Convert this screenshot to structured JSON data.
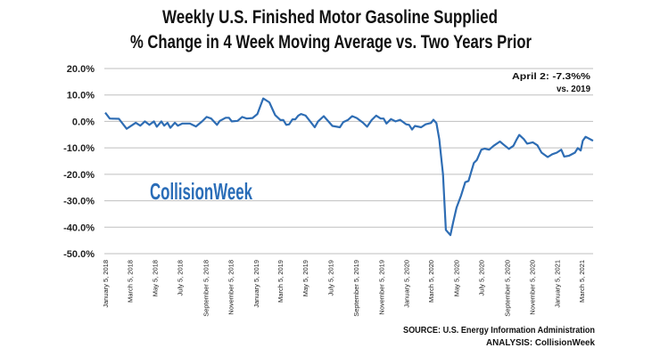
{
  "chart_data": {
    "type": "line",
    "title": "Weekly U.S. Finished Motor Gasoline Supplied",
    "subtitle": "% Change in 4 Week Moving Average vs. Two Years Prior",
    "xlabel": "",
    "ylabel": "",
    "ylim": [
      -50,
      20
    ],
    "y_ticks": [
      "20.0%",
      "10.0%",
      "0.0%",
      "-10.0%",
      "-20.0%",
      "-30.0%",
      "-40.0%",
      "-50.0%"
    ],
    "y_tick_values": [
      20,
      10,
      0,
      -10,
      -20,
      -30,
      -40,
      -50
    ],
    "x_ticks": [
      "January 5, 2018",
      "March 5, 2018",
      "May 5, 2018",
      "July 5, 2018",
      "September 5, 2018",
      "November 5, 2018",
      "January 5, 2019",
      "March 5, 2019",
      "May 5, 2019",
      "July 5, 2019",
      "September 5, 2019",
      "November 5, 2019",
      "January 5, 2020",
      "March 5, 2020",
      "May 5, 2020",
      "July 5, 2020",
      "September 5, 2020",
      "November 5, 2020",
      "January 5, 2021",
      "March 5, 2021"
    ],
    "x_tick_dates": [
      "2018-01-05",
      "2018-03-05",
      "2018-05-05",
      "2018-07-05",
      "2018-09-05",
      "2018-11-05",
      "2019-01-05",
      "2019-03-05",
      "2019-05-05",
      "2019-07-05",
      "2019-09-05",
      "2019-11-05",
      "2020-01-05",
      "2020-03-05",
      "2020-05-05",
      "2020-07-05",
      "2020-09-05",
      "2020-11-05",
      "2021-01-05",
      "2021-03-05"
    ],
    "grid": "horizontal",
    "line_color": "#2e6db4",
    "grid_color": "#bfbfbf",
    "series": [
      {
        "points": [
          [
            "2018-01-05",
            3.3
          ],
          [
            "2018-01-16",
            1.1
          ],
          [
            "2018-02-07",
            1.0
          ],
          [
            "2018-02-26",
            -2.8
          ],
          [
            "2018-03-20",
            -0.5
          ],
          [
            "2018-03-31",
            -1.6
          ],
          [
            "2018-04-11",
            0
          ],
          [
            "2018-04-22",
            -1.3
          ],
          [
            "2018-05-03",
            0
          ],
          [
            "2018-05-10",
            -2
          ],
          [
            "2018-05-21",
            0
          ],
          [
            "2018-05-28",
            -1.6
          ],
          [
            "2018-06-05",
            -0.5
          ],
          [
            "2018-06-12",
            -2.4
          ],
          [
            "2018-06-23",
            -0.5
          ],
          [
            "2018-06-30",
            -1.6
          ],
          [
            "2018-07-11",
            -0.8
          ],
          [
            "2018-07-29",
            -0.8
          ],
          [
            "2018-08-13",
            -1.9
          ],
          [
            "2018-08-28",
            0
          ],
          [
            "2018-09-08",
            1.7
          ],
          [
            "2018-09-19",
            1.1
          ],
          [
            "2018-10-03",
            -1.3
          ],
          [
            "2018-10-10",
            0.2
          ],
          [
            "2018-10-24",
            1.4
          ],
          [
            "2018-11-01",
            1.4
          ],
          [
            "2018-11-08",
            0
          ],
          [
            "2018-11-22",
            0.2
          ],
          [
            "2018-12-03",
            1.7
          ],
          [
            "2018-12-14",
            1.1
          ],
          [
            "2018-12-28",
            1.3
          ],
          [
            "2019-01-09",
            2.8
          ],
          [
            "2019-01-23",
            8.7
          ],
          [
            "2019-02-07",
            7.2
          ],
          [
            "2019-02-21",
            2.4
          ],
          [
            "2019-03-06",
            0.5
          ],
          [
            "2019-03-13",
            0.5
          ],
          [
            "2019-03-20",
            -1.3
          ],
          [
            "2019-03-27",
            -1.1
          ],
          [
            "2019-04-04",
            0.8
          ],
          [
            "2019-04-11",
            0.8
          ],
          [
            "2019-04-18",
            2.2
          ],
          [
            "2019-04-25",
            2.8
          ],
          [
            "2019-05-06",
            2.2
          ],
          [
            "2019-05-17",
            0
          ],
          [
            "2019-05-28",
            -2.2
          ],
          [
            "2019-06-05",
            0
          ],
          [
            "2019-06-19",
            2
          ],
          [
            "2019-07-03",
            -0.5
          ],
          [
            "2019-07-10",
            -1.7
          ],
          [
            "2019-07-28",
            -2.2
          ],
          [
            "2019-08-05",
            -0.3
          ],
          [
            "2019-08-16",
            0.5
          ],
          [
            "2019-08-27",
            2
          ],
          [
            "2019-09-07",
            1.3
          ],
          [
            "2019-09-22",
            -0.5
          ],
          [
            "2019-10-02",
            -2
          ],
          [
            "2019-10-13",
            0.5
          ],
          [
            "2019-10-24",
            2.2
          ],
          [
            "2019-11-04",
            1.1
          ],
          [
            "2019-11-11",
            1.1
          ],
          [
            "2019-11-18",
            -0.8
          ],
          [
            "2019-11-29",
            0.9
          ],
          [
            "2019-12-10",
            0
          ],
          [
            "2019-12-21",
            0.6
          ],
          [
            "2020-01-05",
            -1.1
          ],
          [
            "2020-01-12",
            -1.3
          ],
          [
            "2020-01-19",
            -3.1
          ],
          [
            "2020-01-26",
            -1.7
          ],
          [
            "2020-02-10",
            -2.2
          ],
          [
            "2020-02-21",
            -1.1
          ],
          [
            "2020-03-05",
            -0.6
          ],
          [
            "2020-03-11",
            0.6
          ],
          [
            "2020-03-18",
            -0.6
          ],
          [
            "2020-03-25",
            -6.7
          ],
          [
            "2020-04-03",
            -20
          ],
          [
            "2020-04-10",
            -41
          ],
          [
            "2020-04-21",
            -43
          ],
          [
            "2020-04-28",
            -38
          ],
          [
            "2020-05-06",
            -32.6
          ],
          [
            "2020-05-17",
            -28
          ],
          [
            "2020-05-27",
            -23
          ],
          [
            "2020-06-04",
            -22.5
          ],
          [
            "2020-06-17",
            -15.7
          ],
          [
            "2020-06-24",
            -14.6
          ],
          [
            "2020-07-05",
            -10.7
          ],
          [
            "2020-07-13",
            -10.3
          ],
          [
            "2020-07-24",
            -10.7
          ],
          [
            "2020-08-04",
            -9.2
          ],
          [
            "2020-08-19",
            -7.6
          ],
          [
            "2020-08-30",
            -9
          ],
          [
            "2020-09-10",
            -10.4
          ],
          [
            "2020-09-21",
            -9.2
          ],
          [
            "2020-09-28",
            -7
          ],
          [
            "2020-10-05",
            -5.1
          ],
          [
            "2020-10-16",
            -6.7
          ],
          [
            "2020-10-24",
            -8.4
          ],
          [
            "2020-11-07",
            -7.9
          ],
          [
            "2020-11-18",
            -9
          ],
          [
            "2020-11-28",
            -11.8
          ],
          [
            "2020-12-13",
            -13.5
          ],
          [
            "2020-12-24",
            -12.4
          ],
          [
            "2021-01-04",
            -11.8
          ],
          [
            "2021-01-15",
            -10.7
          ],
          [
            "2021-01-22",
            -13.3
          ],
          [
            "2021-02-02",
            -13
          ],
          [
            "2021-02-17",
            -11.8
          ],
          [
            "2021-02-24",
            -10.1
          ],
          [
            "2021-03-03",
            -11
          ],
          [
            "2021-03-08",
            -7.3
          ],
          [
            "2021-03-15",
            -5.8
          ],
          [
            "2021-04-02",
            -7.3
          ]
        ]
      }
    ],
    "annotation": {
      "line1": "April 2: -7.3%%",
      "line2": "vs. 2019"
    }
  },
  "watermark": "CollisionWeek",
  "footer": {
    "source": "SOURCE: U.S. Energy Information Administration",
    "analysis": "ANALYSIS: CollisionWeek"
  }
}
